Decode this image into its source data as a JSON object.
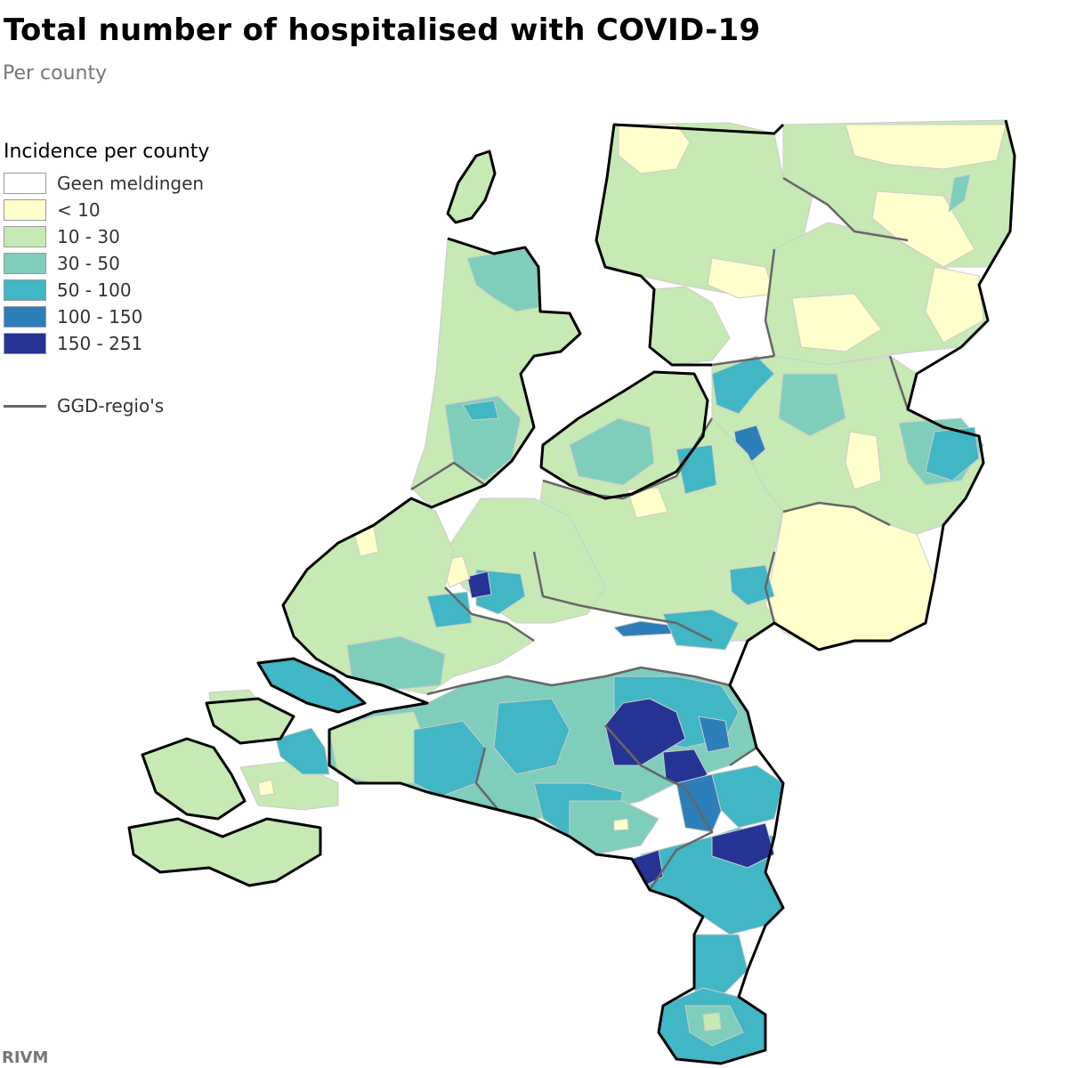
{
  "header": {
    "title": "Total number of hospitalised with COVID-19",
    "subtitle": "Per county"
  },
  "legend": {
    "title": "Incidence per county",
    "items": [
      {
        "label": "Geen meldingen",
        "color": "#ffffff"
      },
      {
        "label": "< 10",
        "color": "#ffffcc"
      },
      {
        "label": "10 - 30",
        "color": "#c7e9b4"
      },
      {
        "label": "30 - 50",
        "color": "#7fcdbb"
      },
      {
        "label": "50 - 100",
        "color": "#41b6c4"
      },
      {
        "label": "100 - 150",
        "color": "#2c7fb8"
      },
      {
        "label": "150 - 251",
        "color": "#253494"
      }
    ],
    "boundary_label": "GGD-regio's",
    "boundary_color": "#666666"
  },
  "map": {
    "region": "Netherlands",
    "outline_color": "#000000",
    "county_border_color": "#d0d0d0"
  },
  "source": "RIVM"
}
